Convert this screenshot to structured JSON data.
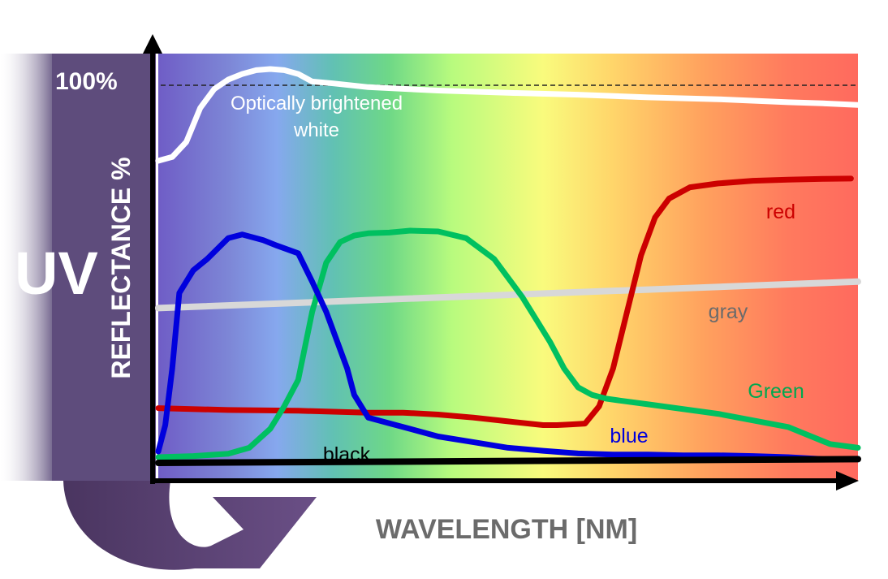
{
  "uv_label": "UV",
  "chart_data": {
    "type": "line",
    "title": "",
    "xlabel": "WAVELENGTH [NM]",
    "ylabel": "REFLECTANCE %",
    "y_tick_labels": [
      "100%"
    ],
    "xlim": [
      0,
      100
    ],
    "ylim": [
      0,
      110
    ],
    "reference_line": {
      "y": 100,
      "style": "dashed"
    },
    "background": "visible spectrum gradient (violet → blue → cyan → green → yellow → orange → red)",
    "grid": false,
    "legend": "labels placed next to each curve",
    "series": [
      {
        "name": "Optically brightened white",
        "label_lines": [
          "Optically brightened",
          "white"
        ],
        "color": "#ffffff",
        "x": [
          0,
          2,
          4,
          6,
          8,
          10,
          12,
          14,
          16,
          18,
          20,
          22,
          25,
          30,
          40,
          50,
          60,
          70,
          80,
          90,
          95,
          100
        ],
        "y": [
          80,
          81,
          85,
          94,
          99,
          101.5,
          103,
          104,
          104.3,
          104,
          103,
          101,
          100.5,
          99.5,
          98.6,
          98,
          97.5,
          96.8,
          96.3,
          95.5,
          95.2,
          94.8
        ]
      },
      {
        "name": "red",
        "color": "#cc0000",
        "x": [
          0,
          10,
          20,
          30,
          35,
          40,
          45,
          50,
          55,
          57,
          59,
          61,
          63,
          65,
          67,
          69,
          71,
          73,
          76,
          80,
          85,
          90,
          95,
          99
        ],
        "y": [
          14.5,
          14,
          13.8,
          13.3,
          13.3,
          12.8,
          12,
          11,
          10,
          10,
          10.2,
          10.4,
          15,
          25,
          40,
          55,
          65,
          70,
          73,
          74,
          74.7,
          75,
          75.2,
          75.3
        ]
      },
      {
        "name": "Green",
        "color": "#00c060",
        "x": [
          0,
          5,
          10,
          13,
          16,
          18,
          20,
          22,
          24,
          26,
          28,
          30,
          33,
          36,
          40,
          44,
          48,
          52,
          54,
          56,
          58,
          60,
          62,
          64,
          66,
          70,
          80,
          90,
          96,
          100
        ],
        "y": [
          1.5,
          1.8,
          2.4,
          4,
          9,
          15,
          22,
          40,
          53,
          58.5,
          60.2,
          60.8,
          61,
          61.5,
          61.3,
          59.5,
          54,
          44,
          38,
          32,
          25,
          20,
          18,
          17,
          16.5,
          15.5,
          13,
          9.5,
          5,
          4
        ]
      },
      {
        "name": "blue",
        "color": "#0000dd",
        "x": [
          0,
          1,
          2,
          3,
          4,
          5,
          7,
          10,
          12,
          15,
          17,
          20,
          22,
          24,
          26,
          27,
          28,
          30,
          33,
          36,
          40,
          45,
          50,
          55,
          60,
          65,
          70,
          75,
          80,
          85,
          90,
          95,
          100
        ],
        "y": [
          3,
          10,
          25,
          45,
          48,
          51,
          54,
          59.5,
          60.5,
          59,
          57.5,
          55.5,
          48,
          40,
          30,
          25,
          18,
          12,
          10.5,
          9,
          7,
          5.5,
          4,
          3.2,
          2.5,
          2.2,
          2.2,
          2,
          2,
          1.8,
          1.5,
          1,
          1
        ]
      },
      {
        "name": "gray",
        "color": "#d8d8d8",
        "x": [
          0,
          100
        ],
        "y": [
          41,
          48
        ]
      },
      {
        "name": "black",
        "color": "#000000",
        "x": [
          0,
          100
        ],
        "y": [
          0,
          1
        ]
      }
    ]
  }
}
